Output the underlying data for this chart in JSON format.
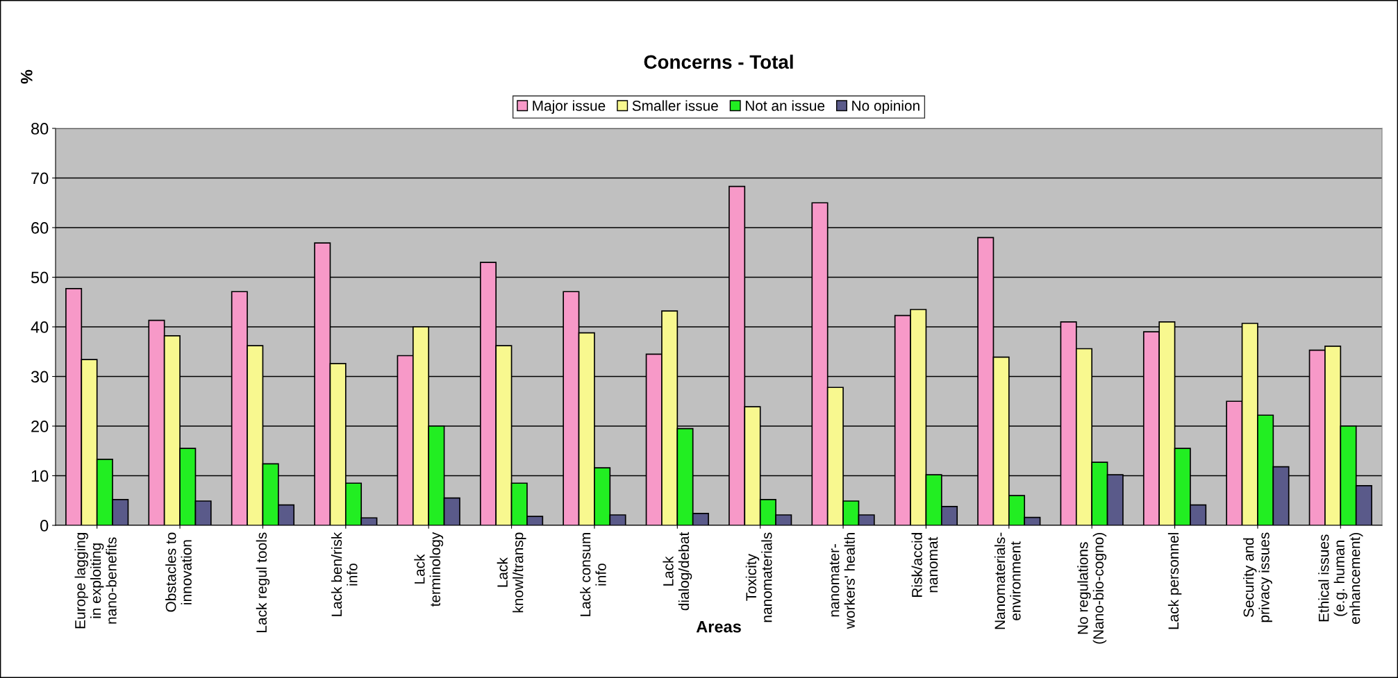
{
  "chart_data": {
    "type": "bar",
    "title": "Concerns - Total",
    "xlabel": "Areas",
    "ylabel": "%",
    "categories": [
      "Europe lagging\nin exploiting\nnano-benefits",
      "Obstacles to\ninnovation",
      "Lack regul tools",
      "Lack ben/risk\ninfo",
      "Lack\nterminology",
      "Lack\nknowl/transp",
      "Lack consum\ninfo",
      "Lack\ndialog/debat",
      "Toxicity\nnanomaterials",
      "nanomater-\nworkers' health",
      "Risk/accid\nnanomat",
      "Nanomaterials-\nenvironment",
      "No regulations\n(Nano-bio-cogno)",
      "Lack personnel",
      "Security and\nprivacy issues",
      "Ethical issues\n(e.g. human\nenhancement)"
    ],
    "series": [
      {
        "name": "Major issue",
        "color": "#f799c8",
        "values": [
          47.7,
          41.3,
          47.1,
          56.9,
          34.2,
          53,
          47.1,
          34.5,
          68.3,
          65,
          42.3,
          58,
          41,
          39,
          25,
          35.3
        ]
      },
      {
        "name": "Smaller issue",
        "color": "#f8f88f",
        "values": [
          33.4,
          38.2,
          36.2,
          32.6,
          40,
          36.2,
          38.8,
          43.2,
          23.9,
          27.8,
          43.5,
          33.9,
          35.6,
          41,
          40.7,
          36.1
        ]
      },
      {
        "name": "Not an issue",
        "color": "#22ee22",
        "values": [
          13.3,
          15.5,
          12.4,
          8.5,
          20,
          8.5,
          11.6,
          19.5,
          5.2,
          4.9,
          10.2,
          6,
          12.7,
          15.5,
          22.2,
          20
        ]
      },
      {
        "name": "No opinion",
        "color": "#5a5a8a",
        "values": [
          5.2,
          4.9,
          4.1,
          1.5,
          5.5,
          1.8,
          2.1,
          2.4,
          2.1,
          2.1,
          3.8,
          1.6,
          10.2,
          4.1,
          11.8,
          8
        ]
      }
    ],
    "ylim": [
      0,
      80
    ],
    "yticks": [
      0,
      10,
      20,
      30,
      40,
      50,
      60,
      70,
      80
    ],
    "grid": "y",
    "legend": "top"
  }
}
